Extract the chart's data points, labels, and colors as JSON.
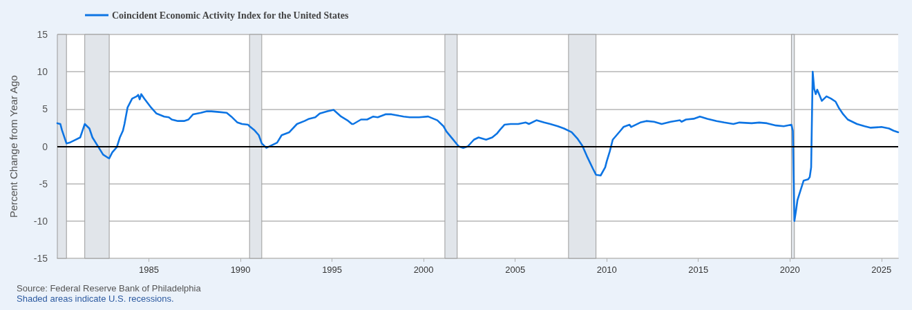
{
  "chart_data": {
    "type": "line",
    "ylabel": "Percent Change from Year Ago",
    "x": [
      "1980-01",
      "1980-03",
      "1980-04",
      "1980-07",
      "1980-09",
      "1980-12",
      "1981-04",
      "1981-07",
      "1981-10",
      "1981-12",
      "1982-04",
      "1982-07",
      "1982-10",
      "1982-11",
      "1983-01",
      "1983-04",
      "1983-06",
      "1983-08",
      "1983-09",
      "1983-11",
      "1984-02",
      "1984-05",
      "1984-06",
      "1984-07",
      "1984-08",
      "1984-10",
      "1985-02",
      "1985-06",
      "1985-11",
      "1986-02",
      "1986-04",
      "1986-08",
      "1986-12",
      "1987-03",
      "1987-06",
      "1987-11",
      "1988-03",
      "1988-06",
      "1988-11",
      "1989-04",
      "1989-07",
      "1989-11",
      "1990-02",
      "1990-06",
      "1990-07",
      "1990-10",
      "1991-01",
      "1991-03",
      "1991-06",
      "1991-09",
      "1992-01",
      "1992-04",
      "1992-09",
      "1993-02",
      "1993-07",
      "1993-10",
      "1994-02",
      "1994-05",
      "1994-10",
      "1995-02",
      "1995-07",
      "1995-11",
      "1996-02",
      "1996-03",
      "1996-08",
      "1996-12",
      "1997-04",
      "1997-07",
      "1997-12",
      "1998-04",
      "1998-09",
      "1998-12",
      "1999-04",
      "1999-10",
      "2000-04",
      "2000-10",
      "2001-02",
      "2001-04",
      "2001-08",
      "2001-12",
      "2002-03",
      "2002-06",
      "2002-10",
      "2003-01",
      "2003-06",
      "2003-10",
      "2004-01",
      "2004-03",
      "2004-06",
      "2004-10",
      "2005-03",
      "2005-08",
      "2005-10",
      "2006-03",
      "2006-08",
      "2006-12",
      "2007-05",
      "2007-09",
      "2008-02",
      "2008-06",
      "2008-09",
      "2008-12",
      "2009-04",
      "2009-06",
      "2009-09",
      "2009-12",
      "2010-01",
      "2010-03",
      "2010-05",
      "2010-10",
      "2010-12",
      "2011-04",
      "2011-05",
      "2011-11",
      "2012-03",
      "2012-08",
      "2013-01",
      "2013-07",
      "2014-01",
      "2014-02",
      "2014-05",
      "2014-10",
      "2015-02",
      "2015-07",
      "2016-01",
      "2016-06",
      "2016-12",
      "2017-04",
      "2017-12",
      "2018-05",
      "2018-10",
      "2019-04",
      "2019-09",
      "2020-02",
      "2020-03",
      "2020-04",
      "2020-05",
      "2020-06",
      "2020-08",
      "2020-10",
      "2021-01",
      "2021-02",
      "2021-03",
      "2021-04",
      "2021-05",
      "2021-06",
      "2021-07",
      "2021-10",
      "2022-01",
      "2022-04",
      "2022-07",
      "2022-09",
      "2022-12",
      "2023-03",
      "2023-09",
      "2024-02",
      "2024-06",
      "2025-01",
      "2025-06",
      "2025-09",
      "2025-12"
    ],
    "series": [
      {
        "name": "Coincident Economic Activity Index for the United States",
        "color": "#0d74e3",
        "values": [
          3.1,
          3.0,
          2.2,
          0.4,
          0.5,
          0.8,
          1.2,
          3.0,
          2.4,
          1.2,
          -0.1,
          -1.1,
          -1.5,
          -1.6,
          -0.8,
          -0.1,
          1.2,
          2.1,
          3.0,
          5.2,
          6.4,
          6.7,
          6.9,
          6.3,
          7.0,
          6.4,
          5.3,
          4.4,
          4.0,
          3.9,
          3.6,
          3.4,
          3.4,
          3.6,
          4.3,
          4.5,
          4.7,
          4.7,
          4.6,
          4.5,
          4.0,
          3.2,
          3.0,
          2.9,
          2.7,
          2.2,
          1.5,
          0.4,
          -0.2,
          0.1,
          0.5,
          1.5,
          1.9,
          3.0,
          3.4,
          3.7,
          3.9,
          4.4,
          4.7,
          4.9,
          4.0,
          3.5,
          3.0,
          3.0,
          3.6,
          3.6,
          4.0,
          3.9,
          4.3,
          4.3,
          4.1,
          4.0,
          3.9,
          3.9,
          4.0,
          3.5,
          2.7,
          2.0,
          1.0,
          0.0,
          -0.2,
          0.0,
          0.9,
          1.2,
          0.9,
          1.2,
          1.7,
          2.2,
          2.9,
          3.0,
          3.0,
          3.2,
          3.0,
          3.5,
          3.2,
          3.0,
          2.7,
          2.4,
          1.9,
          1.0,
          0.1,
          -1.3,
          -3.0,
          -3.8,
          -3.9,
          -2.8,
          -2.0,
          -0.7,
          0.9,
          2.1,
          2.6,
          2.9,
          2.6,
          3.2,
          3.4,
          3.3,
          3.0,
          3.3,
          3.5,
          3.3,
          3.6,
          3.7,
          4.0,
          3.7,
          3.4,
          3.2,
          3.0,
          3.2,
          3.1,
          3.2,
          3.1,
          2.8,
          2.7,
          2.9,
          2.1,
          -10.0,
          -8.7,
          -7.2,
          -5.9,
          -4.6,
          -4.4,
          -4.1,
          -2.8,
          10.0,
          7.7,
          7.0,
          7.6,
          6.1,
          6.7,
          6.4,
          6.0,
          5.2,
          4.3,
          3.6,
          3.0,
          2.7,
          2.5,
          2.6,
          2.4,
          2.1,
          1.9
        ]
      }
    ],
    "xlim": [
      "1980-01",
      "2025-12"
    ],
    "xticks": [
      "1985",
      "1990",
      "1995",
      "2000",
      "2005",
      "2010",
      "2015",
      "2020",
      "2025"
    ],
    "ylim": [
      -15,
      15
    ],
    "yticks": [
      -15,
      -10,
      -5,
      0,
      5,
      10,
      15
    ],
    "bands": [
      {
        "axis": "x",
        "from": "1980-01",
        "to": "1980-07",
        "color": "#e1e5ea"
      },
      {
        "axis": "x",
        "from": "1981-07",
        "to": "1982-11",
        "color": "#e1e5ea"
      },
      {
        "axis": "x",
        "from": "1990-07",
        "to": "1991-03",
        "color": "#e1e5ea"
      },
      {
        "axis": "x",
        "from": "2001-03",
        "to": "2001-11",
        "color": "#e1e5ea"
      },
      {
        "axis": "x",
        "from": "2007-12",
        "to": "2009-06",
        "color": "#e1e5ea"
      },
      {
        "axis": "x",
        "from": "2020-02",
        "to": "2020-04",
        "color": "#e1e5ea"
      }
    ],
    "ref_lines": [
      {
        "axis": "y",
        "value": 0,
        "color": "#000000"
      }
    ],
    "annotations": [
      "Source: Federal Reserve Bank of Philadelphia",
      "Shaded areas indicate U.S. recessions."
    ],
    "grid": "y",
    "legend": "top left",
    "marker": "none",
    "line_style": "solid"
  }
}
